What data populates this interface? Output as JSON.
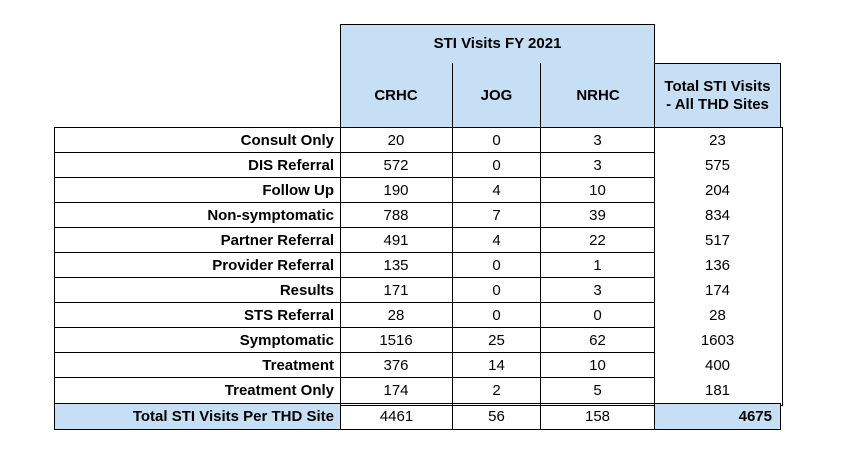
{
  "table": {
    "title": "STI Visits FY 2021",
    "columns": [
      "CRHC",
      "JOG",
      "NRHC"
    ],
    "total_column_label": "Total STI Visits - All THD Sites",
    "rows": [
      {
        "label": "Consult Only",
        "values": [
          "20",
          "0",
          "3"
        ],
        "total": "23"
      },
      {
        "label": "DIS Referral",
        "values": [
          "572",
          "0",
          "3"
        ],
        "total": "575"
      },
      {
        "label": "Follow Up",
        "values": [
          "190",
          "4",
          "10"
        ],
        "total": "204"
      },
      {
        "label": "Non-symptomatic",
        "values": [
          "788",
          "7",
          "39"
        ],
        "total": "834"
      },
      {
        "label": "Partner Referral",
        "values": [
          "491",
          "4",
          "22"
        ],
        "total": "517"
      },
      {
        "label": "Provider Referral",
        "values": [
          "135",
          "0",
          "1"
        ],
        "total": "136"
      },
      {
        "label": "Results",
        "values": [
          "171",
          "0",
          "3"
        ],
        "total": "174"
      },
      {
        "label": "STS Referral",
        "values": [
          "28",
          "0",
          "0"
        ],
        "total": "28"
      },
      {
        "label": "Symptomatic",
        "values": [
          "1516",
          "25",
          "62"
        ],
        "total": "1603"
      },
      {
        "label": "Treatment",
        "values": [
          "376",
          "14",
          "10"
        ],
        "total": "400"
      },
      {
        "label": "Treatment Only",
        "values": [
          "174",
          "2",
          "5"
        ],
        "total": "181"
      }
    ],
    "footer": {
      "label": "Total STI Visits Per THD Site",
      "values": [
        "4461",
        "56",
        "158"
      ],
      "total": "4675"
    },
    "colors": {
      "header_fill": "#c6dff4",
      "border": "#000000"
    }
  }
}
